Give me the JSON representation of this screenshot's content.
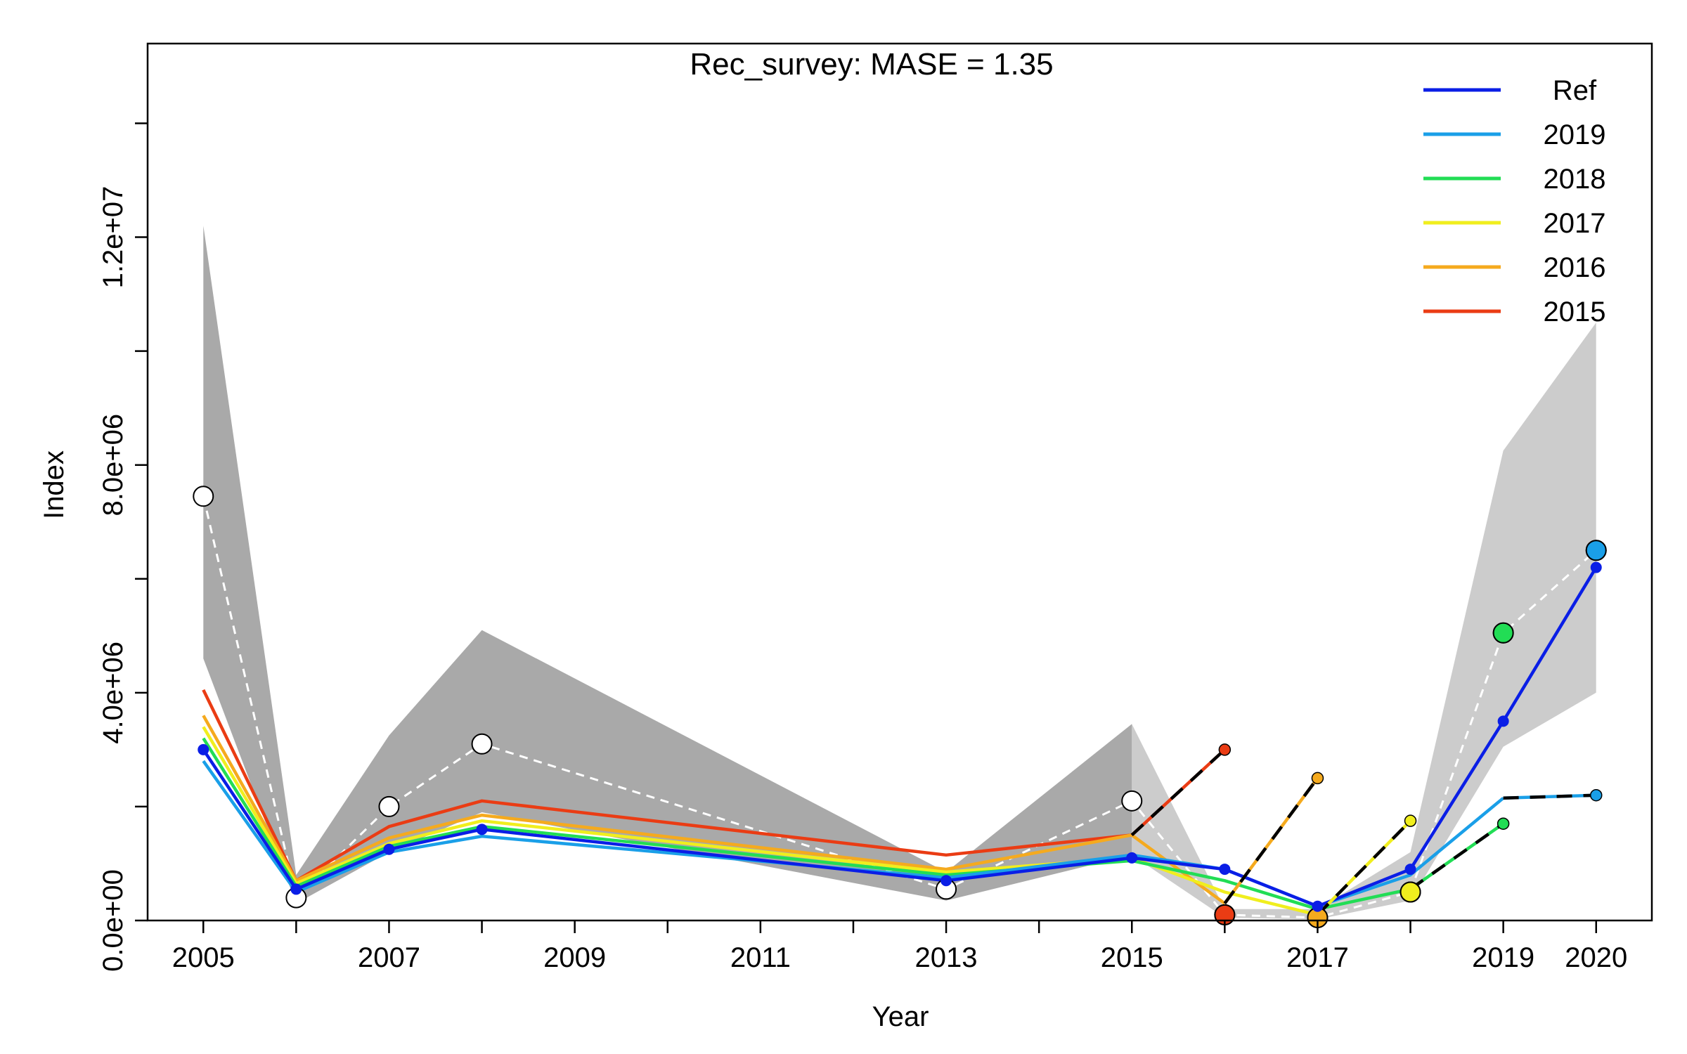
{
  "chart_data": {
    "type": "line",
    "title": "Rec_survey: MASE = 1.35",
    "xlabel": "Year",
    "ylabel": "Index",
    "xlim": [
      2004.4,
      2020.6
    ],
    "ylim": [
      0,
      15400000
    ],
    "x_ticks": [
      2005,
      2006,
      2007,
      2008,
      2009,
      2010,
      2011,
      2012,
      2013,
      2014,
      2015,
      2016,
      2017,
      2018,
      2019,
      2020
    ],
    "x_tick_labels": [
      {
        "x": 2005,
        "label": "2005"
      },
      {
        "x": 2007,
        "label": "2007"
      },
      {
        "x": 2009,
        "label": "2009"
      },
      {
        "x": 2011,
        "label": "2011"
      },
      {
        "x": 2013,
        "label": "2013"
      },
      {
        "x": 2015,
        "label": "2015"
      },
      {
        "x": 2017,
        "label": "2017"
      },
      {
        "x": 2019,
        "label": "2019"
      },
      {
        "x": 2020,
        "label": "2020"
      }
    ],
    "y_ticks": [
      {
        "value": 0,
        "label": "0.0e+00"
      },
      {
        "value": 4000000,
        "label": "4.0e+06"
      },
      {
        "value": 8000000,
        "label": "8.0e+06"
      },
      {
        "value": 12000000,
        "label": "1.2e+07"
      }
    ],
    "y_minor_ticks": [
      2000000,
      6000000,
      10000000,
      14000000
    ],
    "grid": false,
    "legend_position": "top-right",
    "observed": {
      "x": [
        2005,
        2006,
        2007,
        2008,
        2013,
        2015,
        2016,
        2017,
        2018,
        2019,
        2020
      ],
      "y": [
        7450000,
        400000,
        2000000,
        3100000,
        550000,
        2100000,
        100000,
        50000,
        500000,
        5050000,
        6500000
      ]
    },
    "ci_early": {
      "x": [
        2005,
        2006,
        2007,
        2008,
        2013,
        2015
      ],
      "upper": [
        12200000,
        800000,
        3250000,
        5100000,
        850000,
        3450000
      ],
      "lower": [
        4600000,
        300000,
        1200000,
        1900000,
        350000,
        1150000
      ]
    },
    "ci_late": {
      "x": [
        2015,
        2016,
        2017,
        2018,
        2019,
        2020
      ],
      "upper": [
        3450000,
        200000,
        200000,
        1200000,
        8250000,
        10500000
      ],
      "lower": [
        1150000,
        50000,
        20000,
        350000,
        3050000,
        4000000
      ]
    },
    "series": [
      {
        "name": "Ref",
        "color": "#0a1ee6",
        "x": [
          2005,
          2006,
          2007,
          2008,
          2013,
          2015,
          2016,
          2017,
          2018,
          2019,
          2020
        ],
        "y": [
          3000000,
          550000,
          1250000,
          1600000,
          700000,
          1100000,
          900000,
          250000,
          900000,
          3500000,
          6200000
        ]
      },
      {
        "name": "2019",
        "color": "#1a9fe8",
        "x": [
          2005,
          2006,
          2007,
          2008,
          2013,
          2015,
          2016,
          2017,
          2018,
          2019
        ],
        "y": [
          2800000,
          500000,
          1200000,
          1480000,
          750000,
          1150000,
          900000,
          250000,
          800000,
          2150000
        ],
        "forecast": {
          "x": [
            2019,
            2020
          ],
          "y": [
            2150000,
            2200000
          ]
        }
      },
      {
        "name": "2018",
        "color": "#22dd55",
        "x": [
          2005,
          2006,
          2007,
          2008,
          2013,
          2015,
          2016,
          2017,
          2018
        ],
        "y": [
          3200000,
          600000,
          1300000,
          1650000,
          800000,
          1050000,
          700000,
          200000,
          550000
        ],
        "forecast": {
          "x": [
            2018,
            2019
          ],
          "y": [
            550000,
            1700000
          ]
        }
      },
      {
        "name": "2017",
        "color": "#f0ee1e",
        "x": [
          2005,
          2006,
          2007,
          2008,
          2013,
          2015,
          2016,
          2017
        ],
        "y": [
          3400000,
          650000,
          1350000,
          1750000,
          850000,
          1100000,
          500000,
          100000
        ],
        "forecast": {
          "x": [
            2017,
            2018
          ],
          "y": [
            100000,
            1750000
          ]
        }
      },
      {
        "name": "2016",
        "color": "#f5aa1e",
        "x": [
          2005,
          2006,
          2007,
          2008,
          2013,
          2015,
          2016
        ],
        "y": [
          3600000,
          700000,
          1450000,
          1850000,
          900000,
          1500000,
          300000
        ],
        "forecast": {
          "x": [
            2016,
            2017
          ],
          "y": [
            300000,
            2500000
          ]
        }
      },
      {
        "name": "2015",
        "color": "#ea3c14",
        "x": [
          2005,
          2006,
          2007,
          2008,
          2013,
          2015
        ],
        "y": [
          4050000,
          700000,
          1650000,
          2100000,
          1150000,
          1500000
        ],
        "forecast": {
          "x": [
            2015,
            2016
          ],
          "y": [
            1500000,
            3000000
          ]
        }
      }
    ],
    "highlighted_points": [
      {
        "x": 2016,
        "y": 100000,
        "color": "#ea3c14"
      },
      {
        "x": 2017,
        "y": 50000,
        "color": "#f5aa1e"
      },
      {
        "x": 2018,
        "y": 500000,
        "color": "#f0ee1e"
      },
      {
        "x": 2019,
        "y": 5050000,
        "color": "#22dd55"
      },
      {
        "x": 2020,
        "y": 6500000,
        "color": "#1a9fe8"
      }
    ]
  }
}
